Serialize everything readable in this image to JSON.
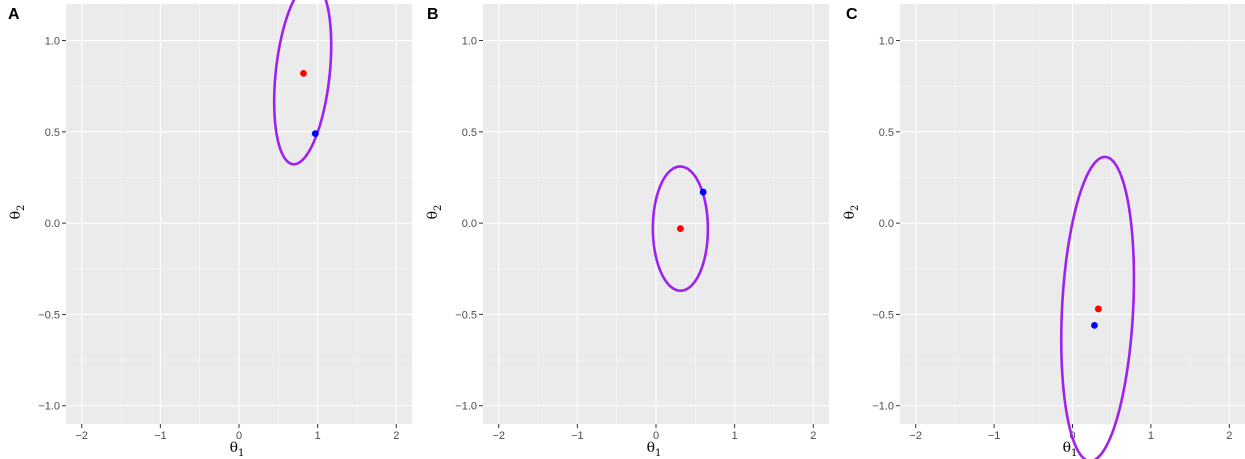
{
  "colors": {
    "panel_bg": "#ebebeb",
    "grid_major": "#ffffff",
    "grid_minor": "#f5f5f5",
    "ellipse": "#a020f0",
    "point_red": "#ff0000",
    "point_blue": "#0000ff",
    "tick_text": "#4d4d4d",
    "tick_mark": "#333333"
  },
  "chart_data": [
    {
      "panel": "A",
      "type": "scatter",
      "xlabel": "θ",
      "xlabel_sub": "1",
      "ylabel": "θ",
      "ylabel_sub": "2",
      "xlim": [
        -2.2,
        2.2
      ],
      "ylim": [
        -1.1,
        1.2
      ],
      "x_ticks": [
        -2,
        -1,
        0,
        1,
        2
      ],
      "x_tick_labels": [
        "−2",
        "−1",
        "0",
        "1",
        "2"
      ],
      "y_ticks": [
        -1.0,
        -0.5,
        0.0,
        0.5,
        1.0
      ],
      "y_tick_labels": [
        "−1.0",
        "−0.5",
        "0.0",
        "0.5",
        "1.0"
      ],
      "grid": true,
      "ellipse": {
        "cx": 0.81,
        "cy": 0.82,
        "half_axis_1": 0.52,
        "half_axis_2": 0.33,
        "angle_deg": 68.0
      },
      "points": [
        {
          "x": 0.82,
          "y": 0.82,
          "color": "red"
        },
        {
          "x": 0.97,
          "y": 0.49,
          "color": "blue"
        }
      ]
    },
    {
      "panel": "B",
      "type": "scatter",
      "xlabel": "θ",
      "xlabel_sub": "1",
      "ylabel": "θ",
      "ylabel_sub": "2",
      "xlim": [
        -2.2,
        2.2
      ],
      "ylim": [
        -1.1,
        1.2
      ],
      "x_ticks": [
        -2,
        -1,
        0,
        1,
        2
      ],
      "x_tick_labels": [
        "−2",
        "−1",
        "0",
        "1",
        "2"
      ],
      "y_ticks": [
        -1.0,
        -0.5,
        0.0,
        0.5,
        1.0
      ],
      "y_tick_labels": [
        "−1.0",
        "−0.5",
        "0.0",
        "0.5",
        "1.0"
      ],
      "grid": true,
      "ellipse": {
        "cx": 0.31,
        "cy": -0.03,
        "half_axis_1": 0.34,
        "half_axis_2": 0.35,
        "angle_deg": 84.0
      },
      "points": [
        {
          "x": 0.31,
          "y": -0.03,
          "color": "red"
        },
        {
          "x": 0.6,
          "y": 0.17,
          "color": "blue"
        }
      ]
    },
    {
      "panel": "C",
      "type": "scatter",
      "xlabel": "θ",
      "xlabel_sub": "1",
      "ylabel": "θ",
      "ylabel_sub": "2",
      "xlim": [
        -2.2,
        2.2
      ],
      "ylim": [
        -1.1,
        1.2
      ],
      "x_ticks": [
        -2,
        -1,
        0,
        1,
        2
      ],
      "x_tick_labels": [
        "−2",
        "−1",
        "0",
        "1",
        "2"
      ],
      "y_ticks": [
        -1.0,
        -0.5,
        0.0,
        0.5,
        1.0
      ],
      "y_tick_labels": [
        "−1.0",
        "−0.5",
        "0.0",
        "0.5",
        "1.0"
      ],
      "grid": true,
      "ellipse": {
        "cx": 0.32,
        "cy": -0.47,
        "half_axis_1": 0.84,
        "half_axis_2": 0.45,
        "angle_deg": 81.0
      },
      "points": [
        {
          "x": 0.33,
          "y": -0.47,
          "color": "red"
        },
        {
          "x": 0.28,
          "y": -0.56,
          "color": "blue"
        }
      ]
    }
  ]
}
